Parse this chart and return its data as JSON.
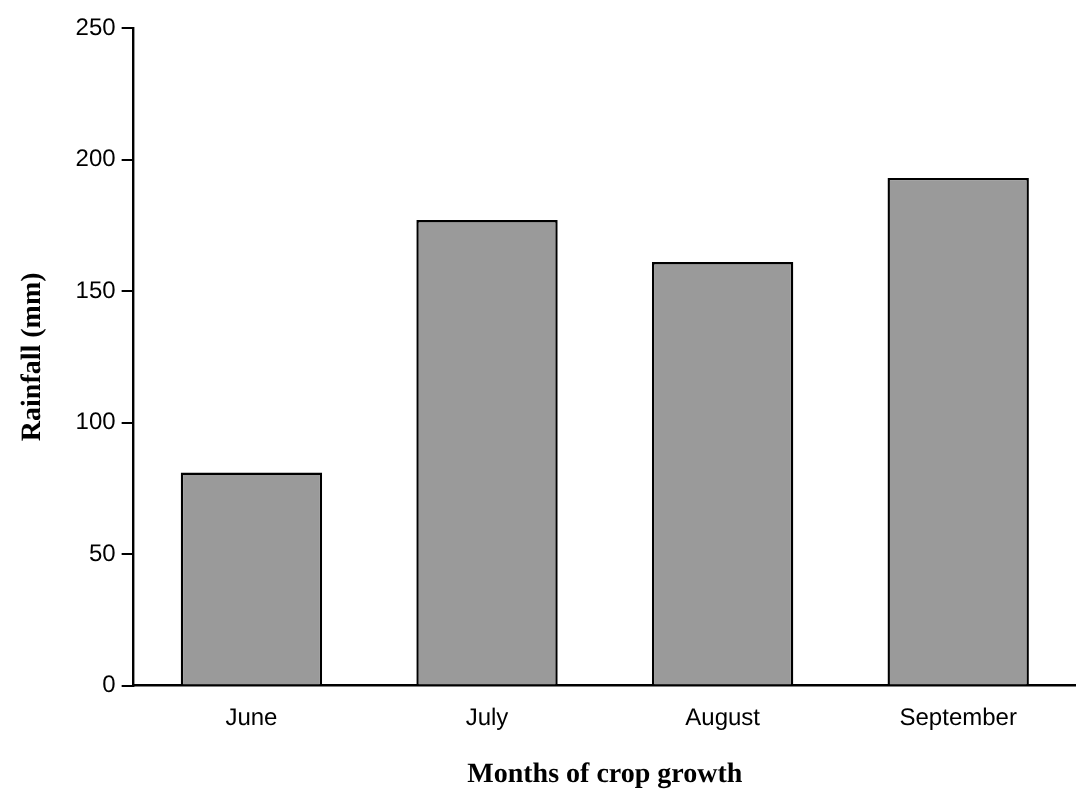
{
  "chart_data": {
    "type": "bar",
    "xlabel": "Months of crop growth",
    "ylabel": "Rainfall (mm)",
    "categories": [
      "June",
      "July",
      "August",
      "September"
    ],
    "values": [
      81,
      177,
      161,
      193
    ],
    "color": "#9a9a9a",
    "ylim": [
      0,
      250
    ],
    "yticks": [
      0,
      50,
      100,
      150,
      200,
      250
    ],
    "grid": false,
    "legend": false
  }
}
